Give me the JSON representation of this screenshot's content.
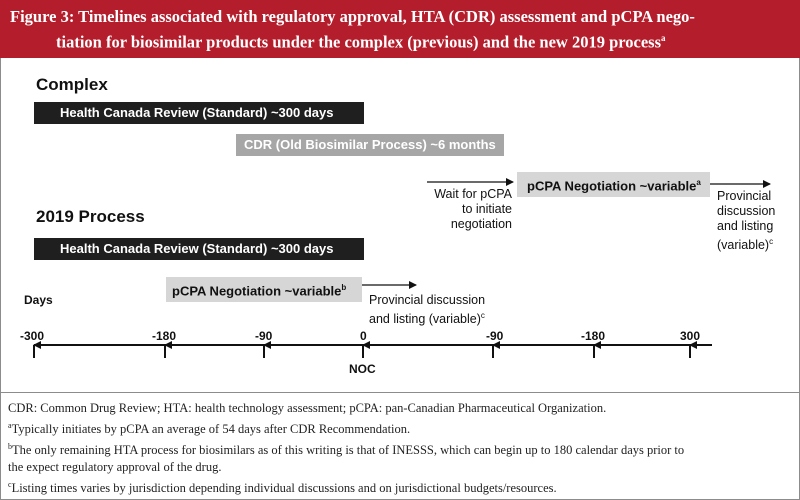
{
  "header": {
    "line1": "Figure 3: Timelines associated with regulatory approval, HTA (CDR) assessment and pCPA nego-",
    "line2": "tiation for biosimilar products under the complex (previous) and the new 2019 process",
    "sup": "a"
  },
  "sections": {
    "complex": "Complex",
    "new_process": "2019 Process"
  },
  "complex": {
    "hc_review": "Health Canada Review (Standard) ~300 days",
    "cdr": "CDR (Old Biosimilar Process) ~6 months",
    "wait_line1": "Wait for pCPA",
    "wait_line2": "to initiate",
    "wait_line3": "negotiation",
    "pcpa": "pCPA Negotiation ~variable",
    "pcpa_sup": "a",
    "prov_line1": "Provincial",
    "prov_line2": "discussion",
    "prov_line3": "and listing",
    "prov_line4": "(variable)",
    "prov_sup": "c"
  },
  "process2019": {
    "hc_review": "Health Canada Review (Standard) ~300 days",
    "pcpa": "pCPA Negotiation ~variable",
    "pcpa_sup": "b",
    "prov_line1": "Provincial discussion",
    "prov_line2": "and listing (variable)",
    "prov_sup": "c"
  },
  "axis": {
    "label": "Days",
    "ticks": [
      "-300",
      "-180",
      "-90",
      "0",
      "-90",
      "-180",
      "300"
    ],
    "noc_label": "NOC"
  },
  "footnotes": {
    "abbrev": "CDR: Common Drug Review; HTA: health technology assessment; pCPA: pan-Canadian Pharmaceutical Organization.",
    "a_mark": "a",
    "a_text": "Typically initiates by pCPA an average of 54 days after CDR Recommendation.",
    "b_mark": "b",
    "b_text_line1": "The only remaining HTA process for biosimilars as of this writing is that of INESSS, which can begin up to 180 calendar days prior to",
    "b_text_line2": "the expect regulatory approval of the drug.",
    "c_mark": "c",
    "c_text": "Listing times varies by jurisdiction depending individual discussions and on jurisdictional budgets/resources."
  },
  "colors": {
    "header_bg": "#b41e2c",
    "dark_bar": "#1f1f1f",
    "light_bar": "#d6d6d6",
    "mid_bar": "#a6a6a6"
  }
}
